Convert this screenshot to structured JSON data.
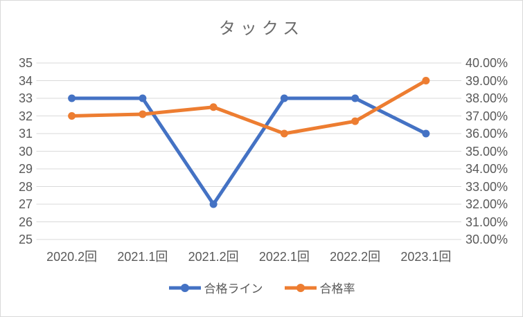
{
  "chart_data": {
    "type": "line",
    "title": "タックス",
    "categories": [
      "2020.2回",
      "2021.1回",
      "2021.2回",
      "2022.1回",
      "2022.2回",
      "2023.1回"
    ],
    "series": [
      {
        "name": "合格ライン",
        "axis": "left",
        "color": "#4472C4",
        "values": [
          33,
          33,
          27,
          33,
          33,
          31
        ]
      },
      {
        "name": "合格率",
        "axis": "right",
        "color": "#ED7D31",
        "values": [
          37.0,
          37.1,
          37.5,
          36.0,
          36.7,
          39.0
        ]
      }
    ],
    "left_axis": {
      "min": 25,
      "max": 35,
      "step": 1,
      "ticks": [
        "35",
        "34",
        "33",
        "32",
        "31",
        "30",
        "29",
        "28",
        "27",
        "26",
        "25"
      ]
    },
    "right_axis": {
      "min": 30,
      "max": 40,
      "step": 1,
      "ticks": [
        "40.00%",
        "39.00%",
        "38.00%",
        "37.00%",
        "36.00%",
        "35.00%",
        "34.00%",
        "33.00%",
        "32.00%",
        "31.00%",
        "30.00%"
      ]
    },
    "grid": true,
    "legend_position": "bottom"
  },
  "style": {
    "background": "#FFFFFF",
    "border_color": "#D9D9D9",
    "gridline_color": "#D9D9D9",
    "axis_text_color": "#595959",
    "title_color": "#6B6B6B"
  }
}
